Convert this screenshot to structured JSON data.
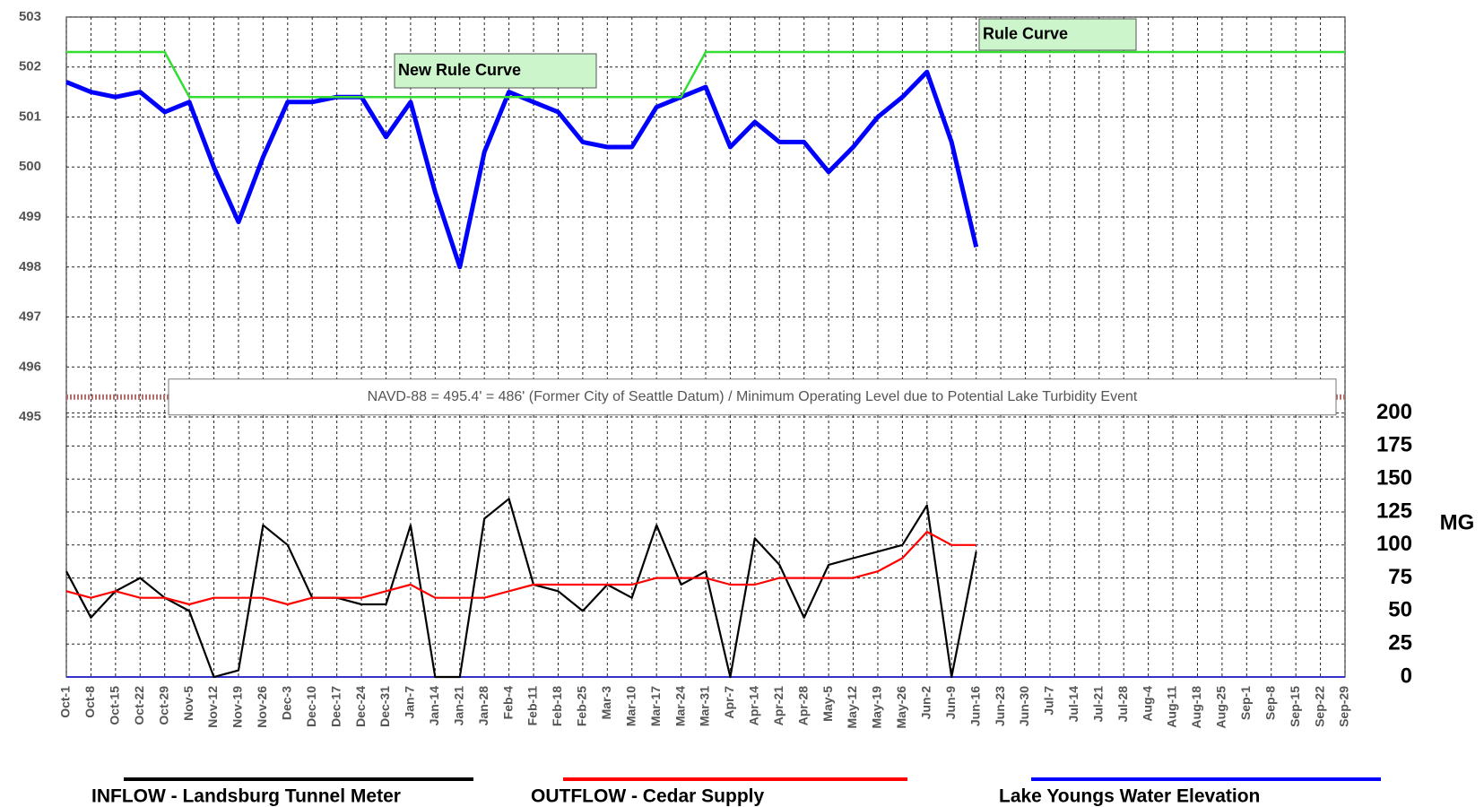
{
  "chart_data": {
    "type": "line",
    "categories": [
      "Oct-1",
      "Oct-8",
      "Oct-15",
      "Oct-22",
      "Oct-29",
      "Nov-5",
      "Nov-12",
      "Nov-19",
      "Nov-26",
      "Dec-3",
      "Dec-10",
      "Dec-17",
      "Dec-24",
      "Dec-31",
      "Jan-7",
      "Jan-14",
      "Jan-21",
      "Jan-28",
      "Feb-4",
      "Feb-11",
      "Feb-18",
      "Feb-25",
      "Mar-3",
      "Mar-10",
      "Mar-17",
      "Mar-24",
      "Mar-31",
      "Apr-7",
      "Apr-14",
      "Apr-21",
      "Apr-28",
      "May-5",
      "May-12",
      "May-19",
      "May-26",
      "Jun-2",
      "Jun-9",
      "Jun-16",
      "Jun-23",
      "Jun-30",
      "Jul-7",
      "Jul-14",
      "Jul-21",
      "Jul-28",
      "Aug-4",
      "Aug-11",
      "Aug-18",
      "Aug-25",
      "Sep-1",
      "Sep-8",
      "Sep-15",
      "Sep-22",
      "Sep-29"
    ],
    "series": [
      {
        "name": "INFLOW - Landsburg Tunnel Meter",
        "color": "#000000",
        "axis": "y2",
        "values": [
          80,
          45,
          65,
          75,
          60,
          50,
          0,
          5,
          115,
          100,
          60,
          60,
          55,
          55,
          115,
          0,
          0,
          120,
          135,
          70,
          65,
          50,
          70,
          60,
          115,
          70,
          80,
          0,
          105,
          85,
          45,
          85,
          90,
          95,
          100,
          130,
          0,
          95,
          null,
          null,
          null,
          null,
          null,
          null,
          null,
          null,
          null,
          null,
          null,
          null,
          null,
          null,
          null
        ]
      },
      {
        "name": "OUTFLOW - Cedar Supply",
        "color": "#ff0000",
        "axis": "y2",
        "values": [
          65,
          60,
          65,
          60,
          60,
          55,
          60,
          60,
          60,
          55,
          60,
          60,
          60,
          65,
          70,
          60,
          60,
          60,
          65,
          70,
          70,
          70,
          70,
          70,
          75,
          75,
          75,
          70,
          70,
          75,
          75,
          75,
          75,
          80,
          90,
          110,
          100,
          100,
          null,
          null,
          null,
          null,
          null,
          null,
          null,
          null,
          null,
          null,
          null,
          null,
          null,
          null,
          null
        ]
      },
      {
        "name": "Lake Youngs Water Elevation",
        "color": "#0000ff",
        "values": [
          501.7,
          501.5,
          501.4,
          501.5,
          501.1,
          501.3,
          500.0,
          498.9,
          500.2,
          501.3,
          501.3,
          501.4,
          501.4,
          500.6,
          501.3,
          499.5,
          498.0,
          500.3,
          501.5,
          501.3,
          501.1,
          500.5,
          500.4,
          500.4,
          501.2,
          501.4,
          501.6,
          500.4,
          500.9,
          500.5,
          500.5,
          499.9,
          500.4,
          501.0,
          501.4,
          501.9,
          500.5,
          498.4,
          null,
          null,
          null,
          null,
          null,
          null,
          null,
          null,
          null,
          null,
          null,
          null,
          null,
          null,
          null
        ]
      },
      {
        "color": "#33dd33",
        "values": [
          502.3,
          502.3,
          502.3,
          502.3,
          502.3,
          501.4,
          501.4,
          501.4,
          501.4,
          501.4,
          501.4,
          501.4,
          501.4,
          501.4,
          501.4,
          501.4,
          501.4,
          501.4,
          501.4,
          501.4,
          501.4,
          501.4,
          501.4,
          501.4,
          501.4,
          501.4,
          502.3,
          502.3,
          502.3,
          502.3,
          502.3,
          502.3,
          502.3,
          502.3,
          502.3,
          502.3,
          502.3,
          502.3,
          502.3,
          502.3,
          502.3,
          502.3,
          502.3,
          502.3,
          502.3,
          502.3,
          502.3,
          502.3,
          502.3,
          502.3,
          502.3,
          502.3,
          502.3
        ]
      }
    ],
    "ylim": [
      489.8,
      503
    ],
    "yticks": [
      495,
      496,
      497,
      498,
      499,
      500,
      501,
      502,
      503
    ],
    "y2lim": [
      0,
      500
    ],
    "y2ticks": [
      0,
      25,
      50,
      75,
      100,
      125,
      150,
      175,
      200
    ],
    "y2_label": "MG",
    "grid": true,
    "annotations": [
      "New Rule Curve",
      "Rule Curve"
    ],
    "reference_line": {
      "value": 495.4,
      "label": "NAVD-88 = 495.4' = 486' (Former City of Seattle Datum) / Minimum Operating Level due to Potential Lake Turbidity Event"
    }
  }
}
